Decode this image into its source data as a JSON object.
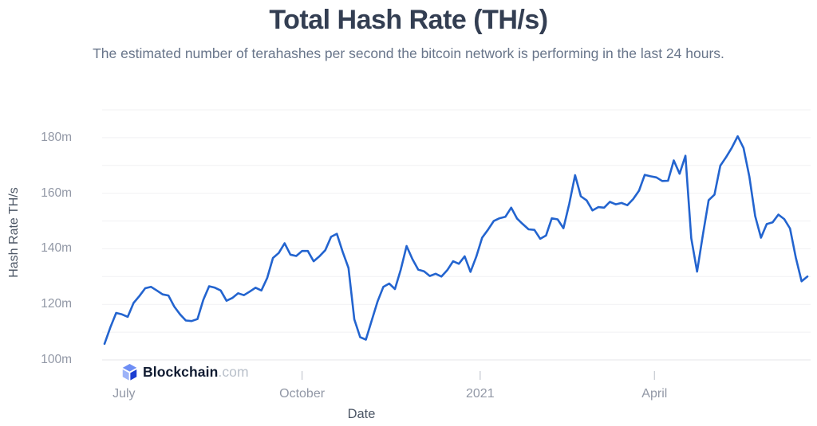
{
  "header": {
    "title": "Total Hash Rate (TH/s)",
    "subtitle": "The estimated number of terahashes per second the bitcoin network is performing in the last 24 hours."
  },
  "watermark": {
    "brand": "Blockchain",
    "tld": ".com"
  },
  "colors": {
    "line": "#2364cf",
    "title": "#333e52",
    "subtitle": "#68758a",
    "tick_label": "#9298a6",
    "axis_title": "#4d5766",
    "grid": "#f1f1f3",
    "axis_line": "#e4e5e8",
    "tick_mark": "#c9cdd4"
  },
  "chart_data": {
    "type": "line",
    "title": "Total Hash Rate (TH/s)",
    "xlabel": "Date",
    "ylabel": "Hash Rate TH/s",
    "legend": "none",
    "grid": "horizontal, every 10m; labels every 20m",
    "unit_suffix": "m",
    "unit_meaning": "millions of TH/s",
    "ylim": [
      100,
      190
    ],
    "grid_step": 10,
    "y_tick_values": [
      100,
      120,
      140,
      160,
      180
    ],
    "x_start_date": "2020-06-21",
    "x_interval_days": 3,
    "x_end_date": "2021-06-19",
    "x_ticks": [
      {
        "label": "July",
        "day": 10,
        "tick_visible": false
      },
      {
        "label": "October",
        "day": 102,
        "tick_visible": true
      },
      {
        "label": "2021",
        "day": 194,
        "tick_visible": true
      },
      {
        "label": "April",
        "day": 284,
        "tick_visible": true
      }
    ],
    "series": [
      {
        "name": "Total Hash Rate",
        "values": [
          105.8,
          111.7,
          116.9,
          116.4,
          115.5,
          120.5,
          123.0,
          125.8,
          126.3,
          125.0,
          123.6,
          123.2,
          119.2,
          116.4,
          114.2,
          114.0,
          114.7,
          121.6,
          126.5,
          126.0,
          125.0,
          121.3,
          122.3,
          124.0,
          123.3,
          124.6,
          126.0,
          125.0,
          129.5,
          136.7,
          138.5,
          142.0,
          137.9,
          137.4,
          139.2,
          139.2,
          135.5,
          137.3,
          139.5,
          144.3,
          145.4,
          138.9,
          133.1,
          114.6,
          108.2,
          107.3,
          114.2,
          121.0,
          126.3,
          127.5,
          125.5,
          132.5,
          141.0,
          136.3,
          132.5,
          131.9,
          130.2,
          131.0,
          130.0,
          132.3,
          135.5,
          134.6,
          137.3,
          131.7,
          137.2,
          144.0,
          146.8,
          150.0,
          151.0,
          151.5,
          154.8,
          150.9,
          148.9,
          147.0,
          146.8,
          143.6,
          144.8,
          151.0,
          150.6,
          147.4,
          156.2,
          166.5,
          158.9,
          157.4,
          153.8,
          155.0,
          154.8,
          156.9,
          156.0,
          156.5,
          155.7,
          157.9,
          160.9,
          166.6,
          166.1,
          165.7,
          164.4,
          164.5,
          171.8,
          167.0,
          173.5,
          143.8,
          131.8,
          144.9,
          157.5,
          159.5,
          169.9,
          173.0,
          176.4,
          180.5,
          176.3,
          166.0,
          151.8,
          144.0,
          148.9,
          149.5,
          152.3,
          150.7,
          147.3,
          136.9,
          128.3,
          130.0
        ]
      }
    ]
  }
}
